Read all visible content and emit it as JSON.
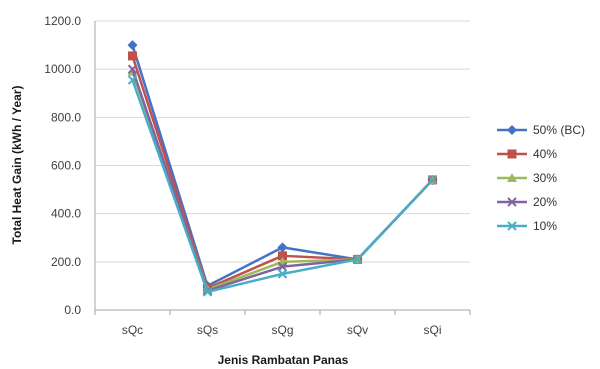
{
  "chart_data": {
    "type": "line",
    "xlabel": "Jenis Rambatan Panas",
    "ylabel": "Total Heat Gain (kWh / Year)",
    "categories": [
      "sQc",
      "sQs",
      "sQg",
      "sQv",
      "sQi"
    ],
    "yticks": [
      "0.0",
      "200.0",
      "400.0",
      "600.0",
      "800.0",
      "1000.0",
      "1200.0"
    ],
    "ylim": [
      0,
      1200
    ],
    "grid": true,
    "legend_position": "right",
    "series": [
      {
        "name": "50% (BC)",
        "color": "#4472C4",
        "marker": "diamond",
        "values": [
          1100,
          100,
          260,
          210,
          540
        ]
      },
      {
        "name": "40%",
        "color": "#C0504D",
        "marker": "square",
        "values": [
          1055,
          90,
          225,
          210,
          540
        ]
      },
      {
        "name": "30%",
        "color": "#9BBB59",
        "marker": "triangle",
        "values": [
          990,
          85,
          200,
          210,
          540
        ]
      },
      {
        "name": "20%",
        "color": "#8064A2",
        "marker": "x",
        "values": [
          1000,
          80,
          180,
          210,
          540
        ]
      },
      {
        "name": "10%",
        "color": "#4BACC6",
        "marker": "x",
        "values": [
          955,
          75,
          150,
          210,
          540
        ]
      }
    ]
  }
}
